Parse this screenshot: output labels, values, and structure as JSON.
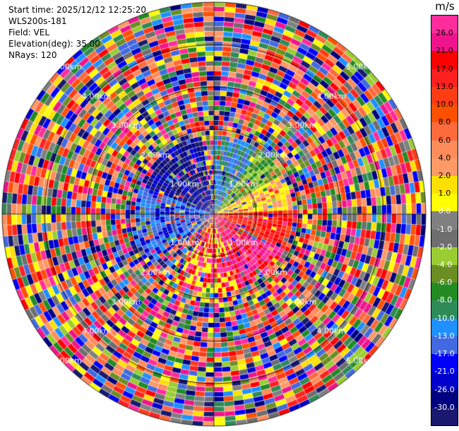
{
  "info": {
    "start_time": "Start time: 2025/12/12 12:25:20",
    "instrument": "WLS200s-181",
    "field": "Field: VEL",
    "elevation": "Elevation(deg): 35.00",
    "nrays": "NRays: 120"
  },
  "range_labels": {
    "r1": "1.00km",
    "r2": "2.00km",
    "r3": "3.00km",
    "r4": "4.00km",
    "r5": "5.00km"
  },
  "colorbar": {
    "unit": "m/s",
    "ticks": [
      "26.0",
      "21.0",
      "17.0",
      "13.0",
      "10.0",
      "8.0",
      "6.0",
      "4.0",
      "2.0",
      "1.0",
      "0.0",
      "-1.0",
      "-2.0",
      "-4.0",
      "-6.0",
      "-8.0",
      "-10.0",
      "-13.0",
      "-17.0",
      "-21.0",
      "-26.0",
      "-30.0"
    ],
    "colors": [
      "#ff2d9b",
      "#f0148c",
      "#ff0000",
      "#ff2020",
      "#ff3c14",
      "#ff5000",
      "#ff6a3c",
      "#ff8c5a",
      "#ff9966",
      "#ffe000",
      "#ffff00",
      "#808080",
      "#6e6e6e",
      "#9acd32",
      "#6b8e23",
      "#228b22",
      "#2e8b57",
      "#1e90ff",
      "#4169e1",
      "#0000ff",
      "#0000cd",
      "#000080",
      "#191970"
    ]
  },
  "chart_data": {
    "type": "ppi",
    "field": "VEL",
    "nrays": 120,
    "elevation_deg": 35.0,
    "range_rings_km": [
      1,
      2,
      3,
      4,
      5
    ],
    "value_range": [
      -30,
      26
    ]
  }
}
